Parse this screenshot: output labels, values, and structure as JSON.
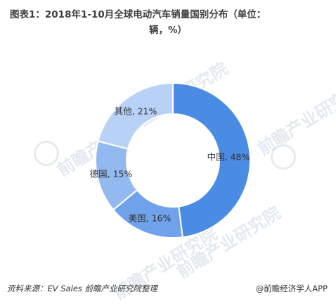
{
  "title": {
    "line1": "图表1：2018年1-10月全球电动汽车销量国别分布（单位：",
    "line2": "辆，%）"
  },
  "chart_data": {
    "type": "pie",
    "variant": "donut",
    "slices": [
      {
        "label": "中国, 48%",
        "name": "中国",
        "value": 48,
        "color": "#4a8be3"
      },
      {
        "label": "美国, 16%",
        "name": "美国",
        "value": 16,
        "color": "#6fa2eb"
      },
      {
        "label": "德国, 15%",
        "name": "德国",
        "value": 15,
        "color": "#93b9f1"
      },
      {
        "label": "其他, 21%",
        "name": "其他",
        "value": 21,
        "color": "#b8d1f6"
      }
    ],
    "start_angle": "12 o'clock",
    "direction": "clockwise"
  },
  "footer": {
    "source": "资料来源：EV Sales  前瞻产业研究院整理",
    "credit": "@前瞻经济学人APP"
  },
  "watermark": {
    "text": "前瞻产业研究院"
  }
}
